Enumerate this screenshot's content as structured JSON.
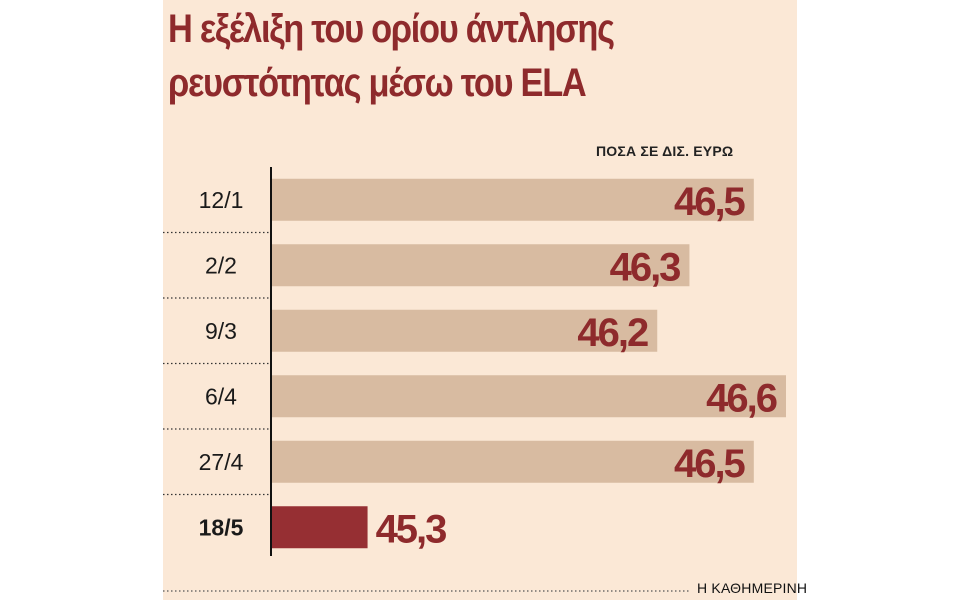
{
  "title": "Η εξέλιξη του ορίου άντλησης ρευστότητας μέσω του ELA",
  "unit_label": "ΠΟΣΑ ΣΕ ΔΙΣ. ΕΥΡΩ",
  "source": "Η ΚΑΘΗΜΕΡΙΝΗ",
  "colors": {
    "panel_background": "#fbe8d6",
    "bar": "#d8bba1",
    "bar_highlight": "#962f33",
    "value_text": "#8e2a2c"
  },
  "chart_data": {
    "type": "bar",
    "orientation": "horizontal",
    "title": "Η εξέλιξη του ορίου άντλησης ρευστότητας μέσω του ELA",
    "categories": [
      "12/1",
      "2/2",
      "9/3",
      "6/4",
      "27/4",
      "18/5"
    ],
    "values": [
      46.5,
      46.3,
      46.2,
      46.6,
      46.5,
      45.3
    ],
    "value_labels": [
      "46,5",
      "46,3",
      "46,2",
      "46,6",
      "46,5",
      "45,3"
    ],
    "highlight_index": 5,
    "xlabel": "",
    "ylabel": "",
    "unit": "ΠΟΣΑ ΣΕ ΔΙΣ. ΕΥΡΩ",
    "xlim": [
      45,
      46.6
    ],
    "grid": false,
    "legend": "none"
  }
}
